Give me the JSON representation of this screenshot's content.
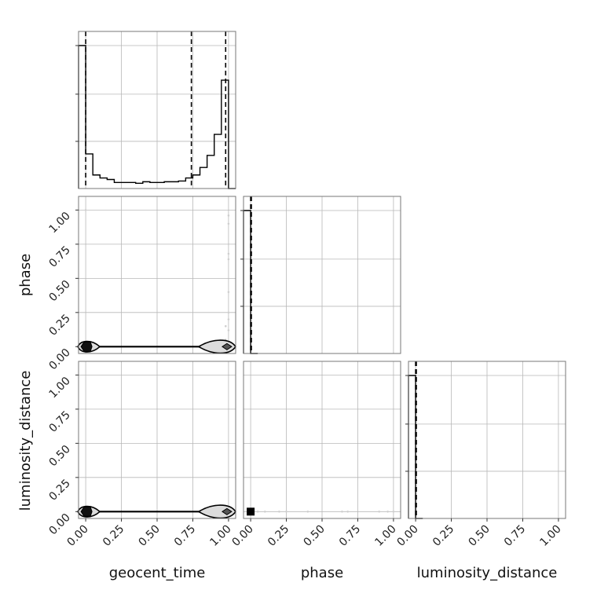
{
  "chart_data": {
    "type": "corner",
    "parameters": [
      "geocent_time",
      "phase",
      "luminosity_distance"
    ],
    "tick_labels": [
      "0.00",
      "0.25",
      "0.50",
      "0.75",
      "1.00"
    ],
    "xlim": [
      -0.05,
      1.05
    ],
    "ylim": [
      -0.05,
      1.1
    ],
    "grid": true,
    "histograms": [
      {
        "parameter": "geocent_time",
        "bin_edges": [
          -0.05,
          0.0,
          0.05,
          0.1,
          0.15,
          0.2,
          0.25,
          0.3,
          0.35,
          0.4,
          0.45,
          0.5,
          0.55,
          0.6,
          0.65,
          0.7,
          0.75,
          0.8,
          0.85,
          0.9,
          0.95,
          1.0,
          1.05
        ],
        "counts": [
          0.95,
          0.23,
          0.09,
          0.07,
          0.06,
          0.04,
          0.04,
          0.04,
          0.035,
          0.045,
          0.04,
          0.04,
          0.045,
          0.045,
          0.05,
          0.07,
          0.09,
          0.14,
          0.22,
          0.36,
          0.72,
          0.0
        ],
        "quantile_lines": [
          0.0,
          0.74,
          0.98
        ]
      },
      {
        "parameter": "phase",
        "bin_edges": [
          -0.05,
          0.0,
          0.05
        ],
        "counts": [
          1.0,
          0.0
        ],
        "quantile_lines": [
          0.0,
          0.005
        ]
      },
      {
        "parameter": "luminosity_distance",
        "bin_edges": [
          -0.05,
          0.0,
          0.05
        ],
        "counts": [
          1.0,
          0.0
        ],
        "quantile_lines": [
          0.0,
          0.005
        ]
      }
    ],
    "scatter_panels": [
      {
        "x_param": "geocent_time",
        "y_param": "phase",
        "points": [
          [
            0.0,
            1.0
          ],
          [
            1.0,
            0.96
          ],
          [
            1.0,
            0.9
          ],
          [
            1.0,
            0.68
          ],
          [
            1.0,
            0.64
          ],
          [
            1.0,
            0.4
          ],
          [
            1.0,
            0.25
          ],
          [
            1.0,
            0.2
          ],
          [
            0.98,
            0.15
          ],
          [
            1.0,
            0.12
          ],
          [
            0.98,
            0.05
          ]
        ],
        "dense_points": [
          [
            0.0,
            0.0
          ],
          [
            1.0,
            0.0
          ]
        ]
      },
      {
        "x_param": "geocent_time",
        "y_param": "luminosity_distance",
        "points": [],
        "dense_points": [
          [
            0.0,
            0.0
          ],
          [
            1.0,
            0.0
          ]
        ]
      },
      {
        "x_param": "phase",
        "y_param": "luminosity_distance",
        "points": [
          [
            0.05,
            0.0
          ],
          [
            0.1,
            0.0
          ],
          [
            0.2,
            0.0
          ],
          [
            0.25,
            0.0
          ],
          [
            0.4,
            0.0
          ],
          [
            0.64,
            0.0
          ],
          [
            0.68,
            0.0
          ],
          [
            0.9,
            0.0
          ],
          [
            0.96,
            0.0
          ],
          [
            1.0,
            0.0
          ]
        ],
        "dense_points": [
          [
            0.0,
            0.0
          ]
        ]
      }
    ]
  }
}
